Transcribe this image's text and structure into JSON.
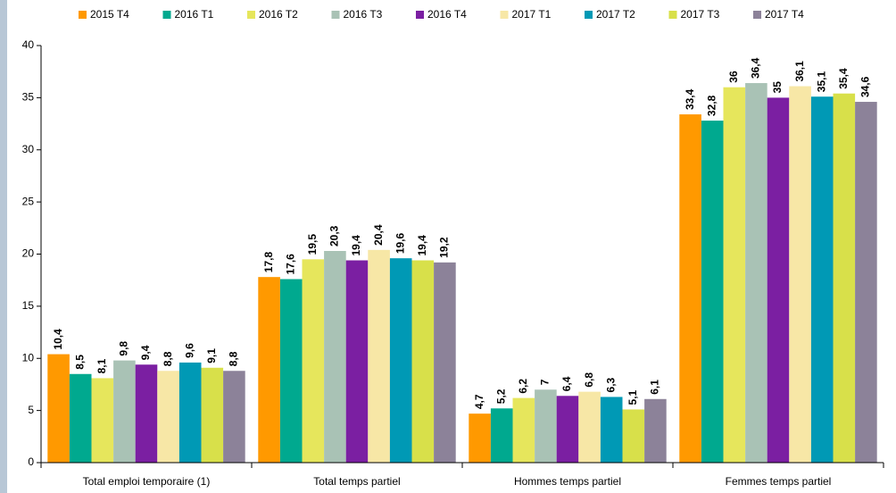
{
  "chart_data": {
    "type": "bar",
    "categories": [
      "Total emploi temporaire (1)",
      "Total temps partiel",
      "Hommes temps partiel",
      "Femmes temps partiel"
    ],
    "series": [
      {
        "name": "2015 T4",
        "color": "#ff9900",
        "values": [
          10.4,
          17.8,
          4.7,
          33.4
        ],
        "value_labels": [
          "10,4",
          "17,8",
          "4,7",
          "33,4"
        ]
      },
      {
        "name": "2016 T1",
        "color": "#00a98f",
        "values": [
          8.5,
          17.6,
          5.2,
          32.8
        ],
        "value_labels": [
          "8,5",
          "17,6",
          "5,2",
          "32,8"
        ]
      },
      {
        "name": "2016 T2",
        "color": "#e6e65c",
        "values": [
          8.1,
          19.5,
          6.2,
          36
        ],
        "value_labels": [
          "8,1",
          "19,5",
          "6,2",
          "36"
        ]
      },
      {
        "name": "2016 T3",
        "color": "#a9c2b5",
        "values": [
          9.8,
          20.3,
          7,
          36.4
        ],
        "value_labels": [
          "9,8",
          "20,3",
          "7",
          "36,4"
        ]
      },
      {
        "name": "2016 T4",
        "color": "#7b1fa2",
        "values": [
          9.4,
          19.4,
          6.4,
          35
        ],
        "value_labels": [
          "9,4",
          "19,4",
          "6,4",
          "35"
        ]
      },
      {
        "name": "2017 T1",
        "color": "#f7e7a6",
        "values": [
          8.8,
          20.4,
          6.8,
          36.1
        ],
        "value_labels": [
          "8,8",
          "20,4",
          "6,8",
          "36,1"
        ]
      },
      {
        "name": "2017 T2",
        "color": "#0099b5",
        "values": [
          9.6,
          19.6,
          6.3,
          35.1
        ],
        "value_labels": [
          "9,6",
          "19,6",
          "6,3",
          "35,1"
        ]
      },
      {
        "name": "2017 T3",
        "color": "#d8e04a",
        "values": [
          9.1,
          19.4,
          5.1,
          35.4
        ],
        "value_labels": [
          "9,1",
          "19,4",
          "5,1",
          "35,4"
        ]
      },
      {
        "name": "2017 T4",
        "color": "#8c8299",
        "values": [
          8.8,
          19.2,
          6.1,
          34.6
        ],
        "value_labels": [
          "8,8",
          "19,2",
          "6,1",
          "34,6"
        ]
      }
    ],
    "ylim": [
      0,
      40
    ],
    "yticks": [
      0,
      5,
      10,
      15,
      20,
      25,
      30,
      35,
      40
    ],
    "grid": false,
    "legend": "top"
  }
}
